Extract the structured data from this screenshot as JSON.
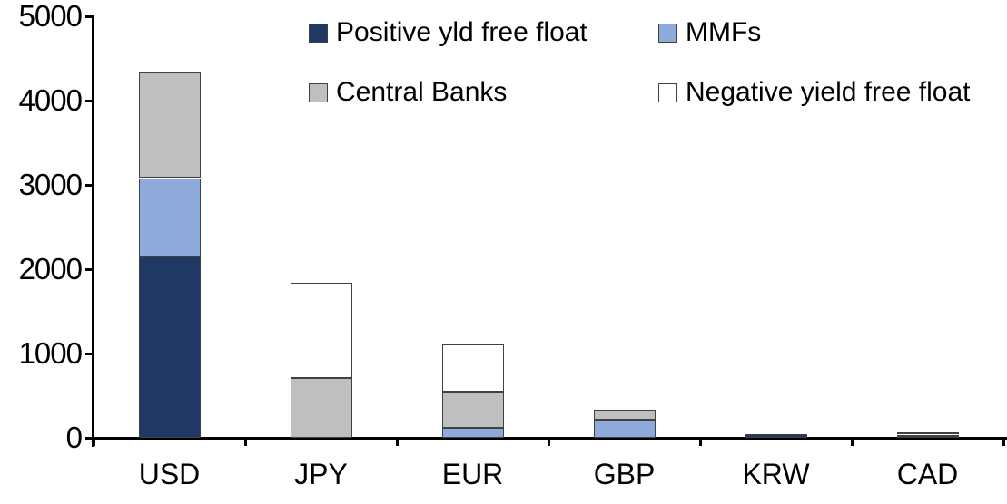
{
  "chart_data": {
    "type": "bar",
    "subtype": "stacked-vertical",
    "title": "",
    "xlabel": "",
    "ylabel": "",
    "categories": [
      "USD",
      "JPY",
      "EUR",
      "GBP",
      "KRW",
      "CAD"
    ],
    "series": [
      {
        "name": "Positive yld free float",
        "color": "#1F3864",
        "values": [
          2150,
          0,
          0,
          0,
          40,
          25
        ]
      },
      {
        "name": "MMFs",
        "color": "#8EAADB",
        "values": [
          930,
          0,
          115,
          220,
          0,
          10
        ]
      },
      {
        "name": "Central Banks",
        "color": "#BFBFBF",
        "values": [
          1260,
          710,
          435,
          115,
          0,
          25
        ]
      },
      {
        "name": "Negative yield free float",
        "color": "#FFFFFF",
        "values": [
          0,
          1130,
          560,
          0,
          0,
          0
        ]
      }
    ],
    "totals": [
      4340,
      1840,
      1110,
      335,
      40,
      60
    ],
    "ylim": [
      0,
      5000
    ],
    "yticks": [
      0,
      1000,
      2000,
      3000,
      4000,
      5000
    ],
    "grid": "off",
    "legend_position": "top",
    "legend_layout_rows": [
      [
        "Positive yld free float",
        "MMFs"
      ],
      [
        "Central Banks",
        "Negative yield free float"
      ]
    ],
    "axis_color": "#000000",
    "background_color": "#FFFFFF"
  }
}
